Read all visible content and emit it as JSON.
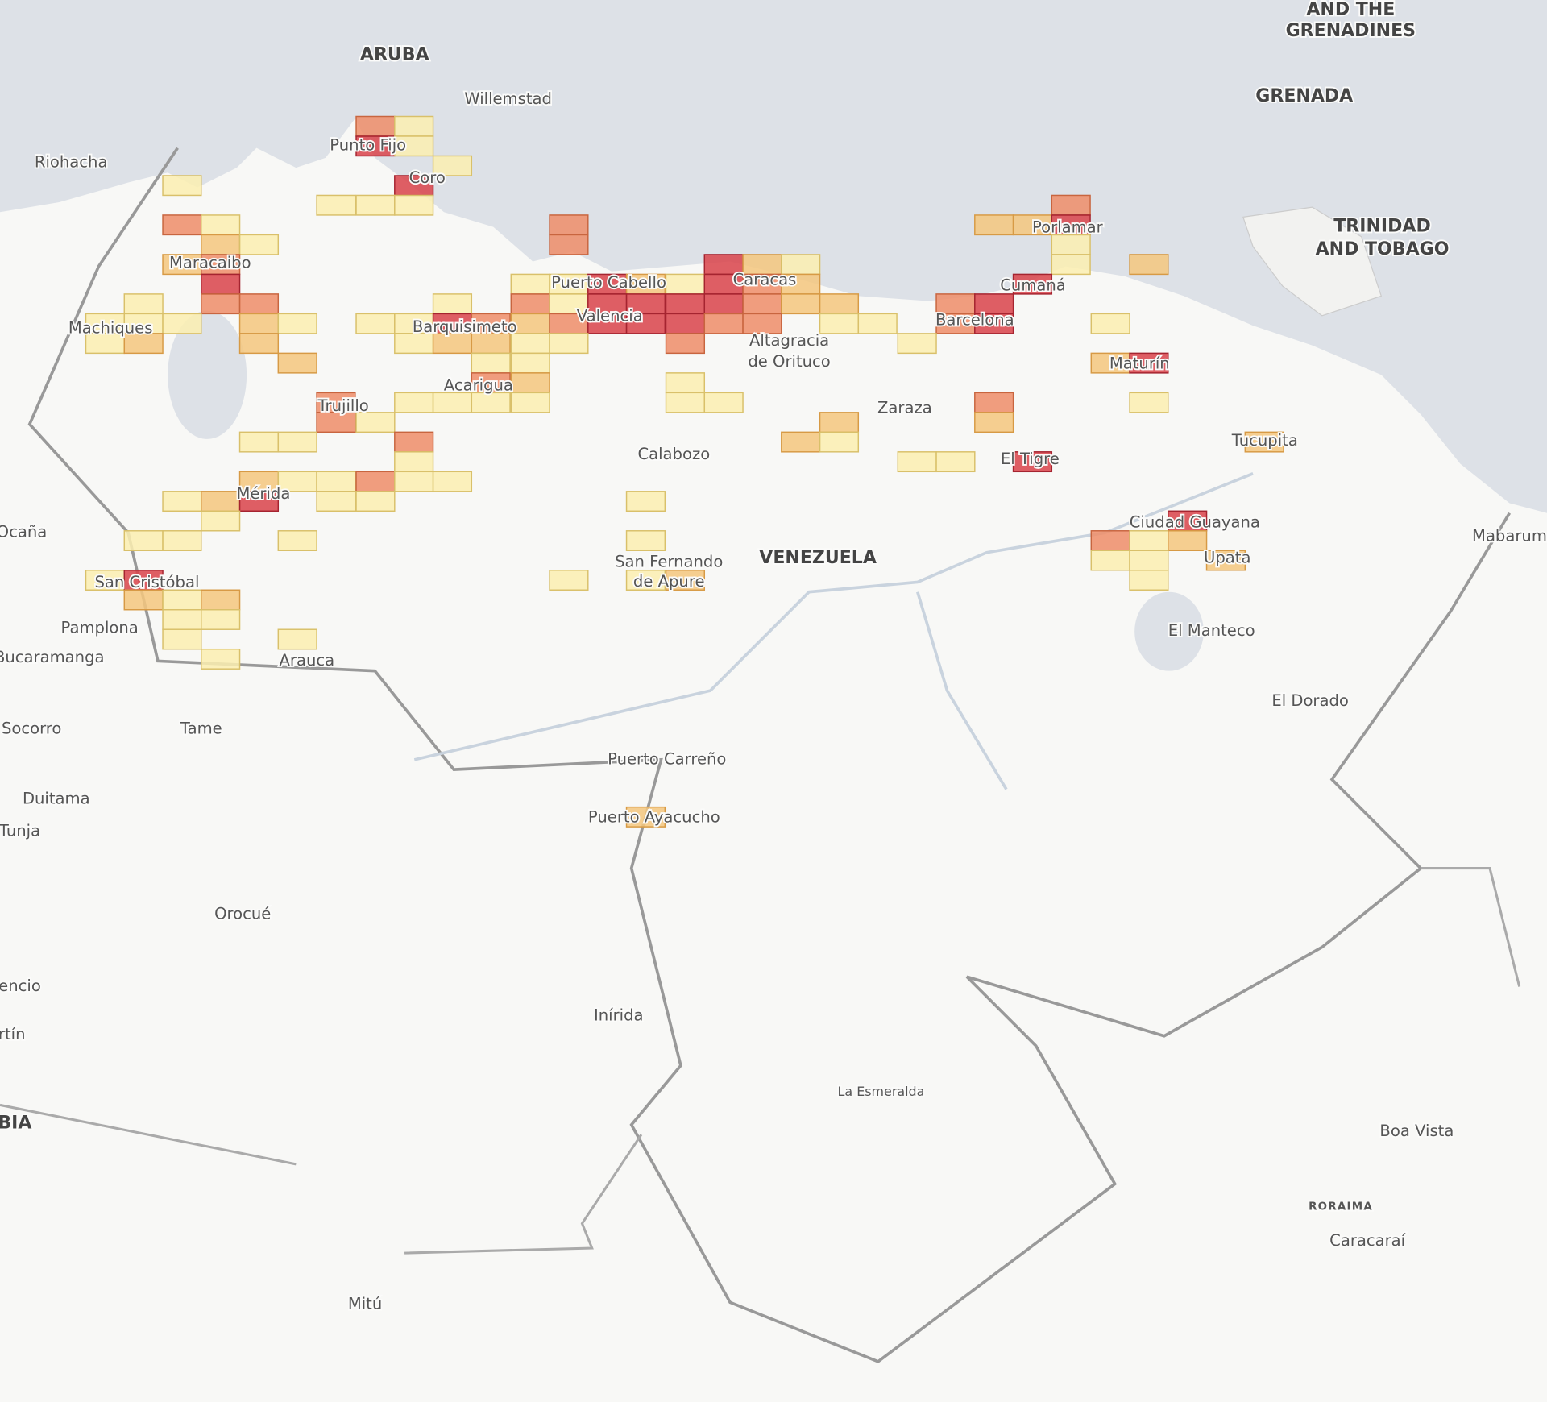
{
  "map": {
    "labels": [
      "ARUBA",
      "Willemstad",
      "AND THE",
      "GRENADINES",
      "GRENADA",
      "TRINIDAD",
      "AND TOBAGO",
      "Riohacha",
      "Punto Fijo",
      "Coro",
      "Maracaibo",
      "Machiques",
      "Puerto Cabello",
      "Caracas",
      "Porlamar",
      "Cumaná",
      "Barquisimeto",
      "Valencia",
      "Barcelona",
      "Altagracia",
      "de Orituco",
      "Maturín",
      "Acarigua",
      "Trujillo",
      "Zaraza",
      "Tucupita",
      "Calabozo",
      "El Tigre",
      "Mérida",
      "Ocaña",
      "Ciudad Guayana",
      "Mabarum",
      "San Fernando",
      "de Apure",
      "VENEZUELA",
      "San Cristóbal",
      "Upata",
      "Pamplona",
      "El Manteco",
      "Bucaramanga",
      "Arauca",
      "El Dorado",
      "Socorro",
      "Tame",
      "Puerto Carreño",
      "Duitama",
      "Puerto Ayacucho",
      "Tunja",
      "Orocué",
      "encio",
      "rtín",
      "Inírida",
      "La Esmeralda",
      "BIA",
      "Boa Vista",
      "RORAIMA",
      "Caracaraí",
      "Mitú"
    ]
  }
}
